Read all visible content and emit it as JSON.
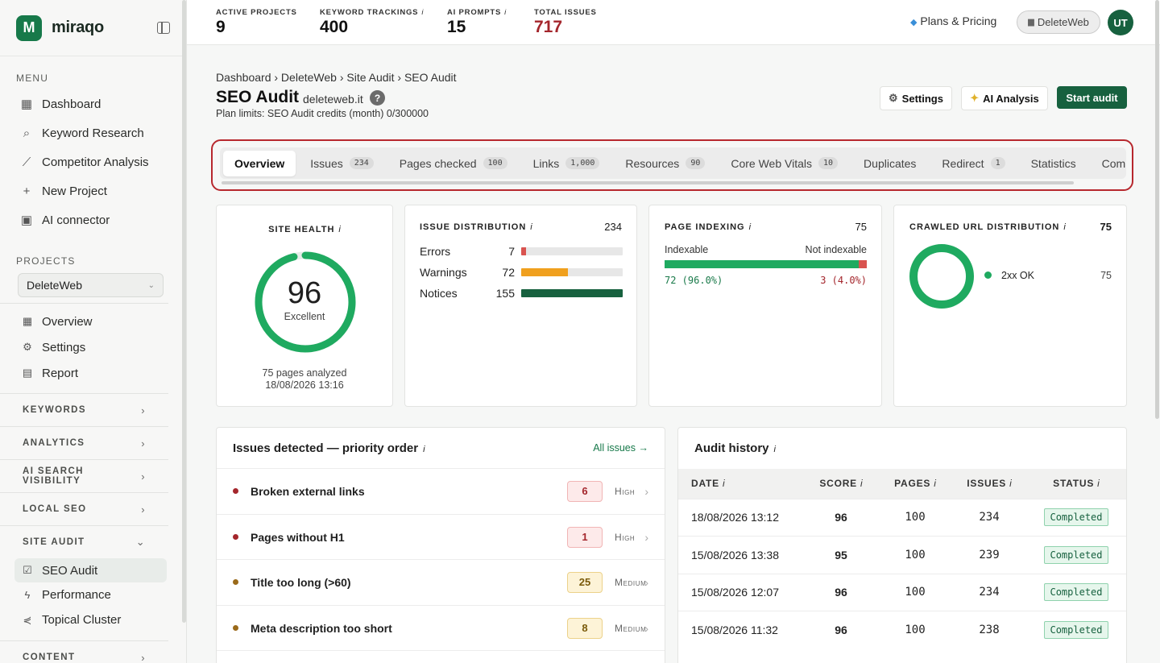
{
  "brand": {
    "name": "miraqo",
    "mark": "M"
  },
  "sidebar": {
    "menu_label": "MENU",
    "menu": [
      {
        "label": "Dashboard",
        "icon": "grid-icon"
      },
      {
        "label": "Keyword Research",
        "icon": "search-icon"
      },
      {
        "label": "Competitor Analysis",
        "icon": "chart-line-icon"
      },
      {
        "label": "New Project",
        "icon": "plus-icon"
      },
      {
        "label": "AI connector",
        "icon": "robot-icon"
      }
    ],
    "projects_label": "PROJECTS",
    "project_select": "DeleteWeb",
    "project_items": [
      {
        "label": "Overview",
        "icon": "grid-icon"
      },
      {
        "label": "Settings",
        "icon": "gear-icon"
      },
      {
        "label": "Report",
        "icon": "document-icon"
      }
    ],
    "groups": [
      "KEYWORDS",
      "ANALYTICS",
      "AI SEARCH VISIBILITY",
      "LOCAL SEO",
      "SITE AUDIT",
      "CONTENT"
    ],
    "site_audit_items": [
      {
        "label": "SEO Audit",
        "icon": "checkbox-icon"
      },
      {
        "label": "Performance",
        "icon": "bolt-icon"
      },
      {
        "label": "Topical Cluster",
        "icon": "share-icon"
      }
    ]
  },
  "topbar": {
    "stats": [
      {
        "label": "ACTIVE PROJECTS",
        "value": "9",
        "info": ""
      },
      {
        "label": "KEYWORD TRACKINGS",
        "value": "400",
        "info": "i"
      },
      {
        "label": "AI PROMPTS",
        "value": "15",
        "info": "i"
      },
      {
        "label": "TOTAL ISSUES",
        "value": "717",
        "info": ""
      }
    ],
    "plans": "Plans & Pricing",
    "workspace": "DeleteWeb",
    "avatar": "UT"
  },
  "header": {
    "breadcrumb": "Dashboard › DeleteWeb › Site Audit › SEO Audit",
    "title": "SEO Audit",
    "domain": "deleteweb.it",
    "help": "?",
    "limits": "Plan limits: SEO Audit credits (month) 0/300000",
    "settings_btn": "Settings",
    "ai_btn": "AI Analysis",
    "start_btn": "Start audit"
  },
  "tabs": [
    {
      "label": "Overview",
      "count": ""
    },
    {
      "label": "Issues",
      "count": "234"
    },
    {
      "label": "Pages checked",
      "count": "100"
    },
    {
      "label": "Links",
      "count": "1,000"
    },
    {
      "label": "Resources",
      "count": "90"
    },
    {
      "label": "Core Web Vitals",
      "count": "10"
    },
    {
      "label": "Duplicates",
      "count": ""
    },
    {
      "label": "Redirect",
      "count": "1"
    },
    {
      "label": "Statistics",
      "count": ""
    },
    {
      "label": "Com",
      "count": ""
    }
  ],
  "site_health": {
    "title": "SITE HEALTH",
    "info": "i",
    "score": "96",
    "score_value": 96,
    "grade": "Excellent",
    "pages": "75 pages analyzed",
    "date": "18/08/2026 13:16",
    "color": "#1faa60"
  },
  "issue_distribution": {
    "title": "ISSUE DISTRIBUTION",
    "info": "i",
    "total": "234",
    "rows": [
      {
        "name": "Errors",
        "count": "7",
        "fraction": 0.045,
        "color": "#d9534f"
      },
      {
        "name": "Warnings",
        "count": "72",
        "fraction": 0.46,
        "color": "#f0a01e"
      },
      {
        "name": "Notices",
        "count": "155",
        "fraction": 1.0,
        "color": "#17613f"
      }
    ]
  },
  "page_indexing": {
    "title": "PAGE INDEXING",
    "info": "i",
    "total": "75",
    "indexable_label": "Indexable",
    "not_indexable_label": "Not indexable",
    "indexable": "72 (96.0%)",
    "not_indexable": "3 (4.0%)",
    "indexable_fraction": 0.96
  },
  "crawled": {
    "title": "CRAWLED URL DISTRIBUTION",
    "info": "i",
    "total": "75",
    "legend": [
      {
        "name": "2xx OK",
        "value": "75",
        "color": "#1faa60"
      }
    ]
  },
  "issues_detected": {
    "title": "Issues detected — priority order",
    "info": "i",
    "link": "All issues →",
    "rows": [
      {
        "name": "Broken external links",
        "count": "6",
        "severity": "High",
        "dot": "#a4262c",
        "bg": "#fdeaea",
        "border": "#f1b5b5",
        "fg": "#a4262c"
      },
      {
        "name": "Pages without H1",
        "count": "1",
        "severity": "High",
        "dot": "#a4262c",
        "bg": "#fdeaea",
        "border": "#f1b5b5",
        "fg": "#a4262c"
      },
      {
        "name": "Title too long (>60)",
        "count": "25",
        "severity": "Medium",
        "dot": "#9a6a1a",
        "bg": "#fdf3d7",
        "border": "#ecd28a",
        "fg": "#7a5a0a"
      },
      {
        "name": "Meta description too short",
        "count": "8",
        "severity": "Medium",
        "dot": "#9a6a1a",
        "bg": "#fdf3d7",
        "border": "#ecd28a",
        "fg": "#7a5a0a"
      }
    ]
  },
  "audit_history": {
    "title": "Audit history",
    "info": "i",
    "columns": [
      "DATE",
      "SCORE",
      "PAGES",
      "ISSUES",
      "STATUS"
    ],
    "rows": [
      {
        "date": "18/08/2026 13:12",
        "score": "96",
        "pages": "100",
        "issues": "234",
        "status": "Completed"
      },
      {
        "date": "15/08/2026 13:38",
        "score": "95",
        "pages": "100",
        "issues": "239",
        "status": "Completed"
      },
      {
        "date": "15/08/2026 12:07",
        "score": "96",
        "pages": "100",
        "issues": "234",
        "status": "Completed"
      },
      {
        "date": "15/08/2026 11:32",
        "score": "96",
        "pages": "100",
        "issues": "238",
        "status": "Completed"
      }
    ]
  }
}
